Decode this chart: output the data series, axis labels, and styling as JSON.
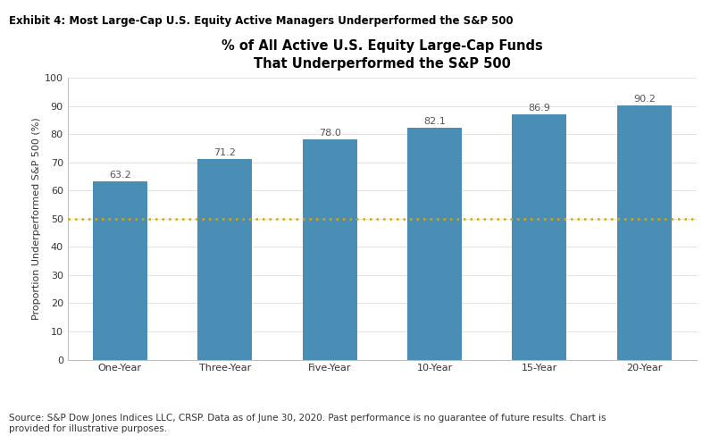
{
  "exhibit_label": "Exhibit 4: Most Large-Cap U.S. Equity Active Managers Underperformed the S&P 500",
  "title": "% of All Active U.S. Equity Large-Cap Funds\nThat Underperformed the S&P 500",
  "ylabel": "Proportion Underperformed S&P 500 (%)",
  "categories": [
    "One-Year",
    "Three-Year",
    "Five-Year",
    "10-Year",
    "15-Year",
    "20-Year"
  ],
  "values": [
    63.2,
    71.2,
    78.0,
    82.1,
    86.9,
    90.2
  ],
  "bar_color": "#4a8db5",
  "reference_line_y": 50,
  "reference_line_color": "#d4aa00",
  "ylim": [
    0,
    100
  ],
  "yticks": [
    0,
    10,
    20,
    30,
    40,
    50,
    60,
    70,
    80,
    90,
    100
  ],
  "source_text": "Source: S&P Dow Jones Indices LLC, CRSP. Data as of June 30, 2020. Past performance is no guarantee of future results. Chart is\nprovided for illustrative purposes.",
  "exhibit_fontsize": 8.5,
  "title_fontsize": 10.5,
  "ylabel_fontsize": 8,
  "tick_fontsize": 8,
  "source_fontsize": 7.5,
  "bar_label_fontsize": 8,
  "background_color": "#ffffff"
}
